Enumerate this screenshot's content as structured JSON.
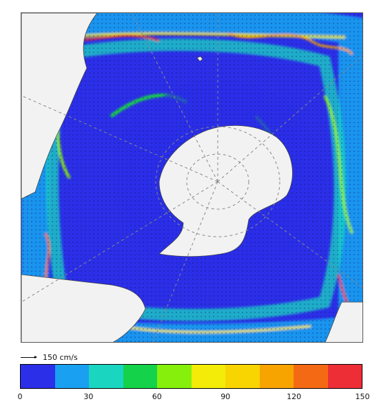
{
  "map": {
    "colors": {
      "ocean_low": "#2b2fe8",
      "ocean_mid": "#1aa0f0",
      "land": "#f2f2f2",
      "graticule": "#888888"
    }
  },
  "reference_vector": {
    "label": "150 cm/s"
  },
  "colorbar": {
    "min": 0,
    "max": 150,
    "swatches": [
      "#2b2fe8",
      "#1aa0f0",
      "#1ad6c0",
      "#14d24a",
      "#86f00c",
      "#f2ec08",
      "#f8d400",
      "#f8a400",
      "#f46a14",
      "#ee2e36"
    ],
    "ticks": [
      "0",
      "30",
      "60",
      "90",
      "120",
      "150"
    ]
  }
}
